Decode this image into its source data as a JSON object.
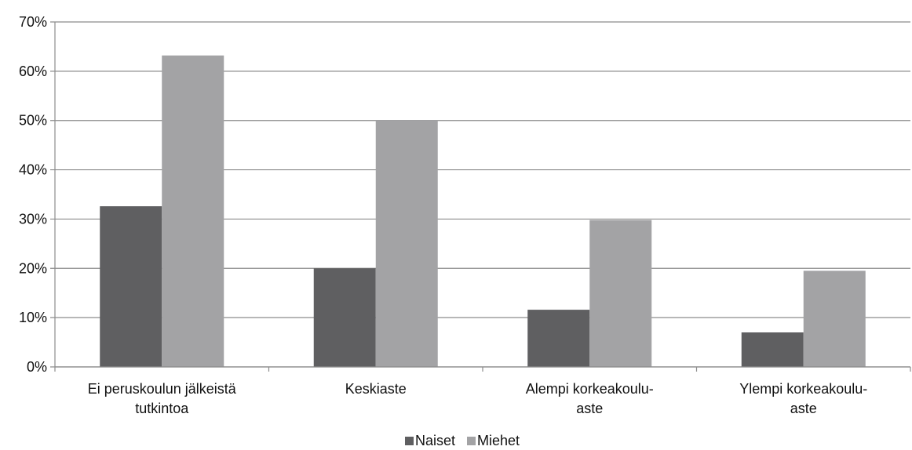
{
  "chart_data": {
    "type": "bar",
    "categories": [
      [
        "Ei peruskoulun jälkeistä",
        "tutkintoa"
      ],
      [
        "Keskiaste"
      ],
      [
        "Alempi korkeakoulu-",
        "aste"
      ],
      [
        "Ylempi korkeakoulu-",
        "aste"
      ]
    ],
    "series": [
      {
        "name": "Naiset",
        "values": [
          32.6,
          20.0,
          11.6,
          7.0
        ],
        "color": "#5f5f61"
      },
      {
        "name": "Miehet",
        "values": [
          63.2,
          50.0,
          29.8,
          19.5
        ],
        "color": "#a3a3a5"
      }
    ],
    "y_ticks": [
      "0%",
      "10%",
      "20%",
      "30%",
      "40%",
      "50%",
      "60%",
      "70%"
    ],
    "ylim": [
      0,
      70
    ],
    "y_unit": "%",
    "grid": true,
    "legend_position": "bottom-center",
    "colors": {
      "grid": "#8c8c8c",
      "axis": "#8c8c8c"
    }
  }
}
